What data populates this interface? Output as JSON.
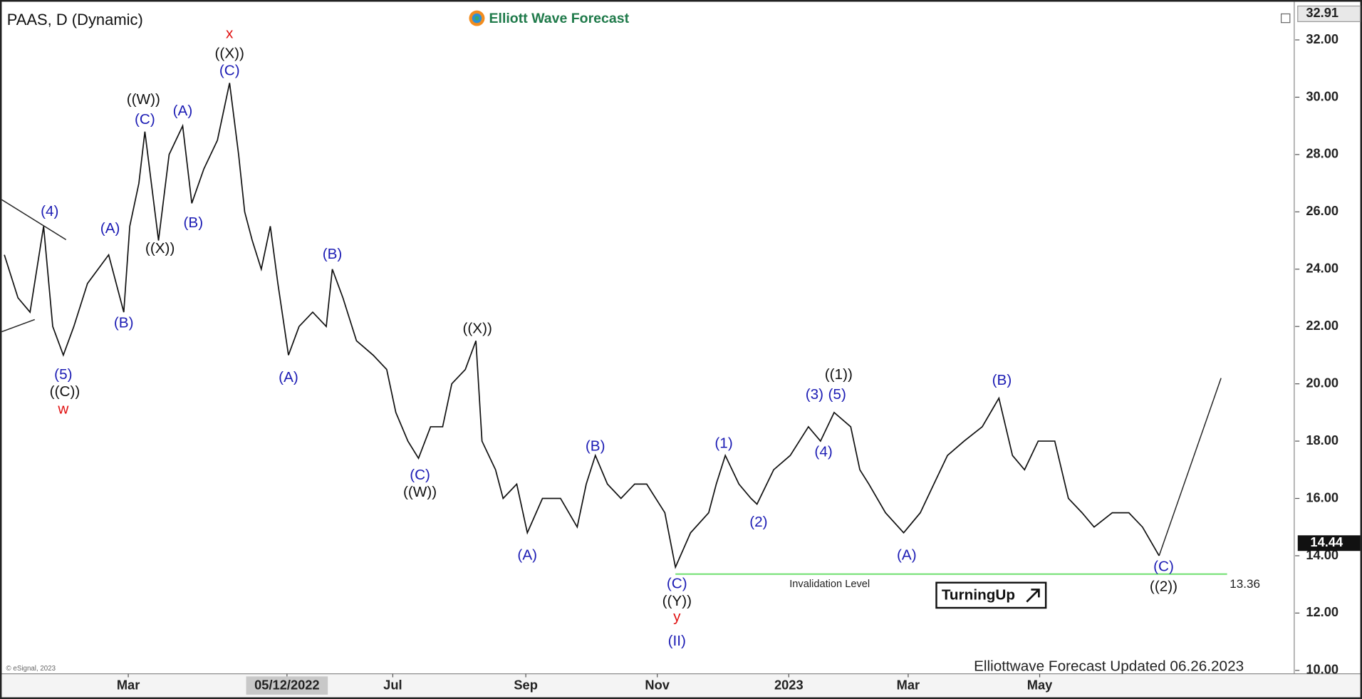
{
  "chart_data": {
    "type": "line",
    "title": "PAAS, D (Dynamic)",
    "logo_text": "Elliott Wave Forecast",
    "footer": "Elliottwave Forecast Updated 06.26.2023",
    "copyright": "© eSignal, 2023",
    "badge": "TurningUp",
    "color": "#111111",
    "x": [
      0,
      0.9,
      1.7,
      2.6,
      3.2,
      3.9,
      4.6,
      5.5,
      6.9,
      7.9,
      8.3,
      8.9,
      9.3,
      10.2,
      10.9,
      11.8,
      12.4,
      13.2,
      14.1,
      14.9,
      15.5,
      15.9,
      16.4,
      17.0,
      17.6,
      18.1,
      18.8,
      19.5,
      20.4,
      21.3,
      21.7,
      22.4,
      23.3,
      24.4,
      25.3,
      25.9,
      26.7,
      27.4,
      28.2,
      29.0,
      29.6,
      30.5,
      31.2,
      31.6,
      32.5,
      33.0,
      33.9,
      34.6,
      35.6,
      36.8,
      37.9,
      38.5,
      39.1,
      39.9,
      40.8,
      41.7,
      42.5,
      43.7,
      44.4,
      45.4,
      46.6,
      47.1,
      47.7,
      48.6,
      49.4,
      49.8,
      50.9,
      52.0,
      53.2,
      54.0,
      54.9,
      56.0,
      56.6,
      57.2,
      58.3,
      59.5,
      60.6,
      61.5,
      62.4,
      63.5,
      64.7,
      65.8,
      66.7,
      67.5,
      68.4,
      69.5,
      70.4,
      71.3,
      72.1,
      73.3,
      74.4,
      75.3,
      76.4
    ],
    "values": [
      24.5,
      23,
      22.5,
      25.5,
      22,
      21,
      22,
      23.5,
      24.5,
      22.5,
      25.5,
      27,
      28.8,
      25,
      28,
      29,
      26.3,
      27.5,
      28.5,
      30.5,
      28,
      26,
      25,
      24,
      25.5,
      23.5,
      21,
      22,
      22.5,
      22,
      24,
      23,
      21.5,
      21,
      20.5,
      19,
      18,
      17.4,
      18.5,
      18.5,
      20,
      20.5,
      21.5,
      18,
      17,
      16,
      16.5,
      14.8,
      16,
      16,
      15,
      16.5,
      17.5,
      16.5,
      16,
      16.5,
      16.5,
      15.5,
      13.6,
      14.8,
      15.5,
      16.5,
      17.5,
      16.5,
      16,
      15.8,
      17,
      17.5,
      18.5,
      18,
      19,
      18.5,
      17,
      16.5,
      15.5,
      14.8,
      15.5,
      16.5,
      17.5,
      18,
      18.5,
      19.5,
      17.5,
      17,
      18,
      18,
      16,
      15.5,
      15,
      15.5,
      15.5,
      15,
      14
    ],
    "projection": {
      "x": [
        76.4,
        80.5
      ],
      "values": [
        14,
        20.2
      ]
    },
    "invalidation": {
      "label": "Invalidation Level",
      "value": 13.36,
      "x": [
        44.4,
        80.9
      ],
      "color": "#66dd66"
    },
    "last_price": {
      "value": 14.44,
      "label": "14.44"
    },
    "axis_top": {
      "value": 32.91,
      "label": "32.91"
    },
    "xlim": [
      0,
      85.4
    ],
    "xticks": [
      {
        "value": 8.2,
        "label": "Mar"
      },
      {
        "value": 18.7,
        "label": "05/12/2022"
      },
      {
        "value": 25.7,
        "label": "Jul"
      },
      {
        "value": 34.5,
        "label": "Sep"
      },
      {
        "value": 43.2,
        "label": "Nov"
      },
      {
        "value": 51.9,
        "label": "2023"
      },
      {
        "value": 59.8,
        "label": "Mar"
      },
      {
        "value": 68.5,
        "label": "May"
      }
    ],
    "ylim": [
      9.88,
      33.15
    ],
    "yticks": [
      {
        "value": 10,
        "label": "10.00"
      },
      {
        "value": 12,
        "label": "12.00"
      },
      {
        "value": 14,
        "label": "14.00"
      },
      {
        "value": 16,
        "label": "16.00"
      },
      {
        "value": 18,
        "label": "18.00"
      },
      {
        "value": 20,
        "label": "20.00"
      },
      {
        "value": 22,
        "label": "22.00"
      },
      {
        "value": 24,
        "label": "24.00"
      },
      {
        "value": 26,
        "label": "26.00"
      },
      {
        "value": 28,
        "label": "28.00"
      },
      {
        "value": 30,
        "label": "30.00"
      },
      {
        "value": 32,
        "label": "32.00"
      }
    ],
    "annotations": [
      {
        "text": "x",
        "x": 14.9,
        "y": 32.2,
        "color": "#e01010"
      },
      {
        "text": "((X))",
        "x": 14.9,
        "y": 31.5,
        "color": "#111111"
      },
      {
        "text": "(C)",
        "x": 14.9,
        "y": 30.9,
        "color": "#1c1cb4"
      },
      {
        "text": "((W))",
        "x": 9.2,
        "y": 29.9,
        "color": "#111111"
      },
      {
        "text": "(C)",
        "x": 9.3,
        "y": 29.2,
        "color": "#1c1cb4"
      },
      {
        "text": "(A)",
        "x": 11.8,
        "y": 29.5,
        "color": "#1c1cb4"
      },
      {
        "text": "(4)",
        "x": 3.0,
        "y": 26.0,
        "color": "#1c1cb4"
      },
      {
        "text": "(A)",
        "x": 7.0,
        "y": 25.4,
        "color": "#1c1cb4"
      },
      {
        "text": "((X))",
        "x": 10.3,
        "y": 24.7,
        "color": "#111111"
      },
      {
        "text": "(B)",
        "x": 12.5,
        "y": 25.6,
        "color": "#1c1cb4"
      },
      {
        "text": "(B)",
        "x": 7.9,
        "y": 22.1,
        "color": "#1c1cb4"
      },
      {
        "text": "(5)",
        "x": 3.9,
        "y": 20.3,
        "color": "#1c1cb4"
      },
      {
        "text": "((C))",
        "x": 4.0,
        "y": 19.7,
        "color": "#111111"
      },
      {
        "text": "w",
        "x": 3.9,
        "y": 19.1,
        "color": "#e01010"
      },
      {
        "text": "(B)",
        "x": 21.7,
        "y": 24.5,
        "color": "#1c1cb4"
      },
      {
        "text": "(A)",
        "x": 18.8,
        "y": 20.2,
        "color": "#1c1cb4"
      },
      {
        "text": "((X))",
        "x": 31.3,
        "y": 21.9,
        "color": "#111111"
      },
      {
        "text": "(C)",
        "x": 27.5,
        "y": 16.8,
        "color": "#1c1cb4"
      },
      {
        "text": "((W))",
        "x": 27.5,
        "y": 16.2,
        "color": "#111111"
      },
      {
        "text": "(A)",
        "x": 34.6,
        "y": 14.0,
        "color": "#1c1cb4"
      },
      {
        "text": "(B)",
        "x": 39.1,
        "y": 17.8,
        "color": "#1c1cb4"
      },
      {
        "text": "(C)",
        "x": 44.5,
        "y": 13.0,
        "color": "#1c1cb4"
      },
      {
        "text": "((Y))",
        "x": 44.5,
        "y": 12.4,
        "color": "#111111"
      },
      {
        "text": "y",
        "x": 44.5,
        "y": 11.85,
        "color": "#e01010"
      },
      {
        "text": "(II)",
        "x": 44.5,
        "y": 11.0,
        "color": "#1c1cb4"
      },
      {
        "text": "(1)",
        "x": 47.6,
        "y": 17.9,
        "color": "#1c1cb4"
      },
      {
        "text": "(2)",
        "x": 49.9,
        "y": 15.15,
        "color": "#1c1cb4"
      },
      {
        "text": "(3)",
        "x": 53.6,
        "y": 19.6,
        "color": "#1c1cb4"
      },
      {
        "text": "(5)",
        "x": 55.1,
        "y": 19.6,
        "color": "#1c1cb4"
      },
      {
        "text": "((1))",
        "x": 55.2,
        "y": 20.3,
        "color": "#111111"
      },
      {
        "text": "(4)",
        "x": 54.2,
        "y": 17.6,
        "color": "#1c1cb4"
      },
      {
        "text": "(A)",
        "x": 59.7,
        "y": 14.0,
        "color": "#1c1cb4"
      },
      {
        "text": "(B)",
        "x": 66.0,
        "y": 20.1,
        "color": "#1c1cb4"
      },
      {
        "text": "(C)",
        "x": 76.7,
        "y": 13.6,
        "color": "#1c1cb4"
      },
      {
        "text": "((2))",
        "x": 76.7,
        "y": 12.9,
        "color": "#111111"
      }
    ]
  }
}
